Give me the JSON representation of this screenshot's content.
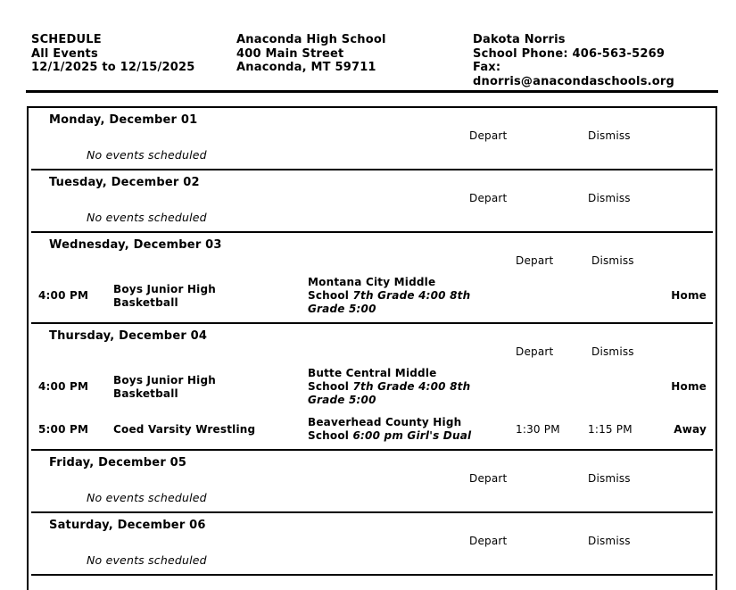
{
  "header": {
    "report": {
      "line1": "SCHEDULE",
      "line2": "All Events",
      "line3": "12/1/2025 to 12/15/2025"
    },
    "school": {
      "name": "Anaconda High School",
      "street": "400 Main Street",
      "city": "Anaconda, MT 59711"
    },
    "contact": {
      "name": "Dakota Norris",
      "phone": "School Phone: 406-563-5269",
      "fax": "Fax:",
      "email": "dnorris@anacondaschools.org"
    }
  },
  "table": {
    "depart_label": "Depart",
    "dismiss_label": "Dismiss",
    "no_events_label": "No events scheduled",
    "days": [
      {
        "title": "Monday, December 01",
        "events": []
      },
      {
        "title": "Tuesday, December 02",
        "events": []
      },
      {
        "title": "Wednesday, December 03",
        "events": [
          {
            "time": "4:00 PM",
            "name": "Boys Junior High Basketball",
            "opponent": "Montana City Middle School",
            "note": "7th Grade 4:00 8th Grade 5:00",
            "location": "Home"
          }
        ]
      },
      {
        "title": "Thursday, December 04",
        "events": [
          {
            "time": "4:00 PM",
            "name": "Boys Junior High Basketball",
            "opponent": "Butte Central Middle School",
            "note": "7th Grade 4:00 8th Grade 5:00",
            "location": "Home"
          },
          {
            "time": "5:00 PM",
            "name": "Coed Varsity Wrestling",
            "opponent": "Beaverhead County High School",
            "note": "6:00 pm Girl's Dual",
            "depart": "1:30 PM",
            "dismiss": "1:15 PM",
            "location": "Away"
          }
        ]
      },
      {
        "title": "Friday, December 05",
        "events": []
      },
      {
        "title": "Saturday, December 06",
        "events": []
      }
    ]
  }
}
